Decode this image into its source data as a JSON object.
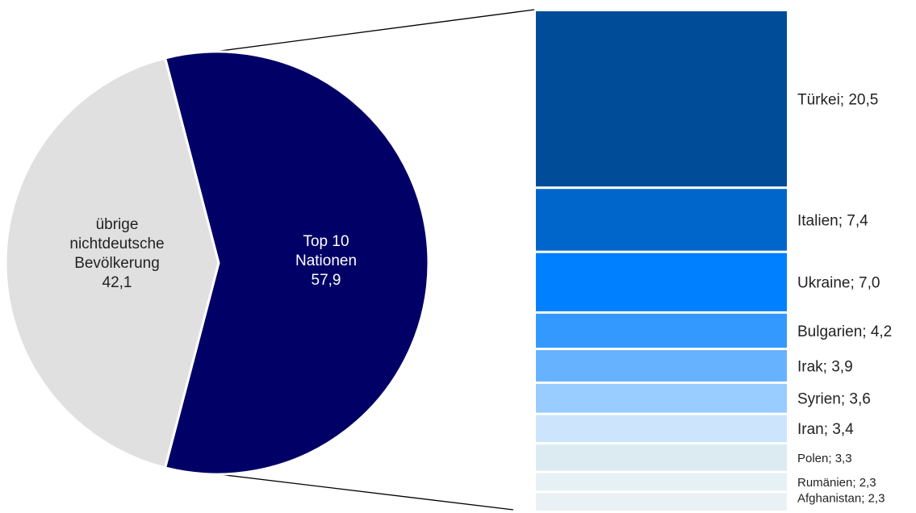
{
  "chart_data": {
    "type": "bar-of-pie",
    "pie": {
      "slices": [
        {
          "name_lines": [
            "übrige",
            "nichtdeutsche",
            "Bevölkerung"
          ],
          "value_label": "42,1",
          "value": 42.1,
          "color": "#e0e0e0",
          "text_color": "#222222"
        },
        {
          "name_lines": [
            "Top 10",
            "Nationen"
          ],
          "value_label": "57,9",
          "value": 57.9,
          "color": "#000066",
          "text_color": "#ffffff"
        }
      ]
    },
    "bar": {
      "items": [
        {
          "label": "Türkei; 20,5",
          "name": "Türkei",
          "value": 20.5,
          "color": "#004c99"
        },
        {
          "label": "Italien; 7,4",
          "name": "Italien",
          "value": 7.4,
          "color": "#0066cc"
        },
        {
          "label": "Ukraine; 7,0",
          "name": "Ukraine",
          "value": 7.0,
          "color": "#0080ff"
        },
        {
          "label": "Bulgarien; 4,2",
          "name": "Bulgarien",
          "value": 4.2,
          "color": "#3399ff"
        },
        {
          "label": "Irak; 3,9",
          "name": "Irak",
          "value": 3.9,
          "color": "#66b2ff"
        },
        {
          "label": "Syrien; 3,6",
          "name": "Syrien",
          "value": 3.6,
          "color": "#99ccff"
        },
        {
          "label": "Iran; 3,4",
          "name": "Iran",
          "value": 3.4,
          "color": "#cce5fc"
        },
        {
          "label": "Polen; 3,3",
          "name": "Polen",
          "value": 3.3,
          "color": "#dcebf2"
        },
        {
          "label": "Rumänien; 2,3",
          "name": "Rumänien",
          "value": 2.3,
          "color": "#e6f1f6"
        },
        {
          "label": "Afghanistan; 2,3",
          "name": "Afghanistan",
          "value": 2.3,
          "color": "#e9f1f4"
        }
      ]
    }
  }
}
